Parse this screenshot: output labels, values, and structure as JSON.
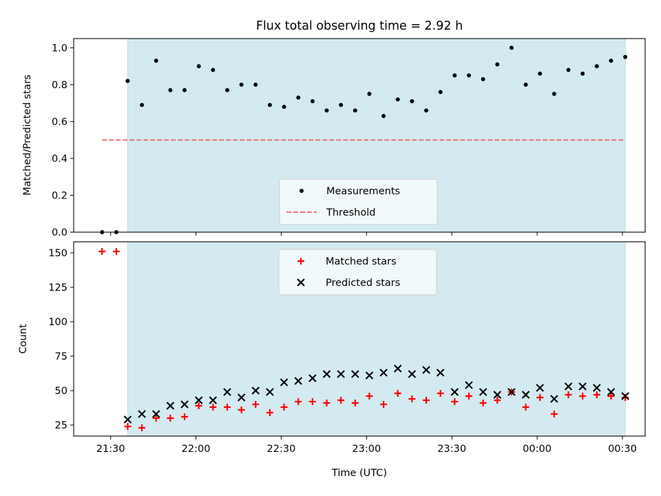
{
  "chart_data": [
    {
      "type": "scatter",
      "title": "Flux total observing time = 2.92 h",
      "xlabel": "",
      "ylabel": "Matched/Predicted stars",
      "ylim": [
        0,
        1.05
      ],
      "yticks": [
        "0.0",
        "0.2",
        "0.4",
        "0.6",
        "0.8",
        "1.0"
      ],
      "shaded_span": [
        "21:36",
        "00:31"
      ],
      "shade_color": "#d3eaf0",
      "legend_placement": "lower center",
      "series": [
        {
          "name": "Measurements",
          "color": "#000000",
          "marker": "dot",
          "x": [
            "21:27",
            "21:32",
            "21:36",
            "21:41",
            "21:46",
            "21:51",
            "21:56",
            "22:01",
            "22:06",
            "22:11",
            "22:16",
            "22:21",
            "22:26",
            "22:31",
            "22:36",
            "22:41",
            "22:46",
            "22:51",
            "22:56",
            "23:01",
            "23:06",
            "23:11",
            "23:16",
            "23:21",
            "23:26",
            "23:31",
            "23:36",
            "23:41",
            "23:46",
            "23:51",
            "23:56",
            "00:01",
            "00:06",
            "00:11",
            "00:16",
            "00:21",
            "00:26",
            "00:31"
          ],
          "values": [
            0.0,
            0.0,
            0.82,
            0.69,
            0.93,
            0.77,
            0.77,
            0.9,
            0.88,
            0.77,
            0.8,
            0.8,
            0.69,
            0.68,
            0.73,
            0.71,
            0.66,
            0.69,
            0.66,
            0.75,
            0.63,
            0.72,
            0.71,
            0.66,
            0.76,
            0.85,
            0.85,
            0.83,
            0.91,
            1.0,
            0.8,
            0.86,
            0.75,
            0.88,
            0.86,
            0.9,
            0.93,
            0.95
          ]
        },
        {
          "name": "Threshold",
          "color": "#f07070",
          "style": "dashed",
          "x": [
            "21:27",
            "00:31"
          ],
          "values": [
            0.5,
            0.5
          ]
        }
      ]
    },
    {
      "type": "scatter",
      "title": "",
      "xlabel": "Time (UTC)",
      "ylabel": "Count",
      "ylim": [
        17,
        158
      ],
      "yticks": [
        "25",
        "50",
        "75",
        "100",
        "125",
        "150"
      ],
      "xticks": [
        "21:30",
        "22:00",
        "22:30",
        "23:00",
        "23:30",
        "00:00",
        "00:30"
      ],
      "shaded_span": [
        "21:36",
        "00:31"
      ],
      "shade_color": "#d3eaf0",
      "legend_placement": "upper center",
      "series": [
        {
          "name": "Matched stars",
          "color": "#ff0000",
          "marker": "plus",
          "x": [
            "21:27",
            "21:32",
            "21:36",
            "21:41",
            "21:46",
            "21:51",
            "21:56",
            "22:01",
            "22:06",
            "22:11",
            "22:16",
            "22:21",
            "22:26",
            "22:31",
            "22:36",
            "22:41",
            "22:46",
            "22:51",
            "22:56",
            "23:01",
            "23:06",
            "23:11",
            "23:16",
            "23:21",
            "23:26",
            "23:31",
            "23:36",
            "23:41",
            "23:46",
            "23:51",
            "23:56",
            "00:01",
            "00:06",
            "00:11",
            "00:16",
            "00:21",
            "00:26",
            "00:31"
          ],
          "values": [
            151,
            151,
            24,
            23,
            30,
            30,
            31,
            39,
            38,
            38,
            36,
            40,
            34,
            38,
            42,
            42,
            41,
            43,
            41,
            46,
            40,
            48,
            44,
            43,
            48,
            42,
            46,
            41,
            43,
            49,
            38,
            45,
            33,
            47,
            46,
            47,
            46,
            45
          ]
        },
        {
          "name": "Predicted stars",
          "color": "#000000",
          "marker": "x",
          "x": [
            "21:36",
            "21:41",
            "21:46",
            "21:51",
            "21:56",
            "22:01",
            "22:06",
            "22:11",
            "22:16",
            "22:21",
            "22:26",
            "22:31",
            "22:36",
            "22:41",
            "22:46",
            "22:51",
            "22:56",
            "23:01",
            "23:06",
            "23:11",
            "23:16",
            "23:21",
            "23:26",
            "23:31",
            "23:36",
            "23:41",
            "23:46",
            "23:51",
            "23:56",
            "00:01",
            "00:06",
            "00:11",
            "00:16",
            "00:21",
            "00:26",
            "00:31"
          ],
          "values": [
            29,
            33,
            33,
            39,
            40,
            43,
            43,
            49,
            45,
            50,
            49,
            56,
            57,
            59,
            62,
            62,
            62,
            61,
            63,
            66,
            62,
            65,
            63,
            49,
            54,
            49,
            47,
            49,
            47,
            52,
            44,
            53,
            53,
            52,
            49,
            46
          ]
        }
      ]
    }
  ]
}
